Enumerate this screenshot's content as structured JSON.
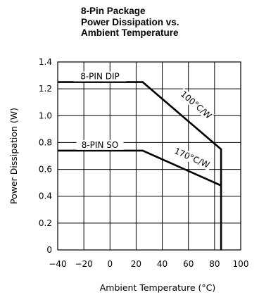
{
  "title": {
    "line1": "8-Pin Package",
    "line2": "Power Dissipation vs.",
    "line3": "Ambient Temperature"
  },
  "chart_data": {
    "type": "line",
    "xlabel": "Ambient Temperature (°C)",
    "ylabel": "Power Dissipation (W)",
    "xlim": [
      -40,
      100
    ],
    "ylim": [
      0,
      1.4
    ],
    "xticks": [
      -40,
      -20,
      0,
      20,
      40,
      60,
      80,
      100
    ],
    "xtick_labels": [
      "−40",
      "−20",
      "0",
      "20",
      "40",
      "60",
      "80",
      "100"
    ],
    "yticks": [
      0,
      0.2,
      0.4,
      0.6,
      0.8,
      1.0,
      1.2,
      1.4
    ],
    "ytick_labels": [
      "0",
      "0.2",
      "0.4",
      "0.6",
      "0.8",
      "1.0",
      "1.2",
      "1.4"
    ],
    "grid": true,
    "series": [
      {
        "name": "8-PIN DIP",
        "slope_label": "100°C/W",
        "x": [
          -40,
          25,
          85,
          85
        ],
        "y": [
          1.25,
          1.25,
          0.75,
          0
        ]
      },
      {
        "name": "8-PIN SO",
        "slope_label": "170°C/W",
        "x": [
          -40,
          25,
          85
        ],
        "y": [
          0.74,
          0.74,
          0.48
        ]
      }
    ]
  }
}
